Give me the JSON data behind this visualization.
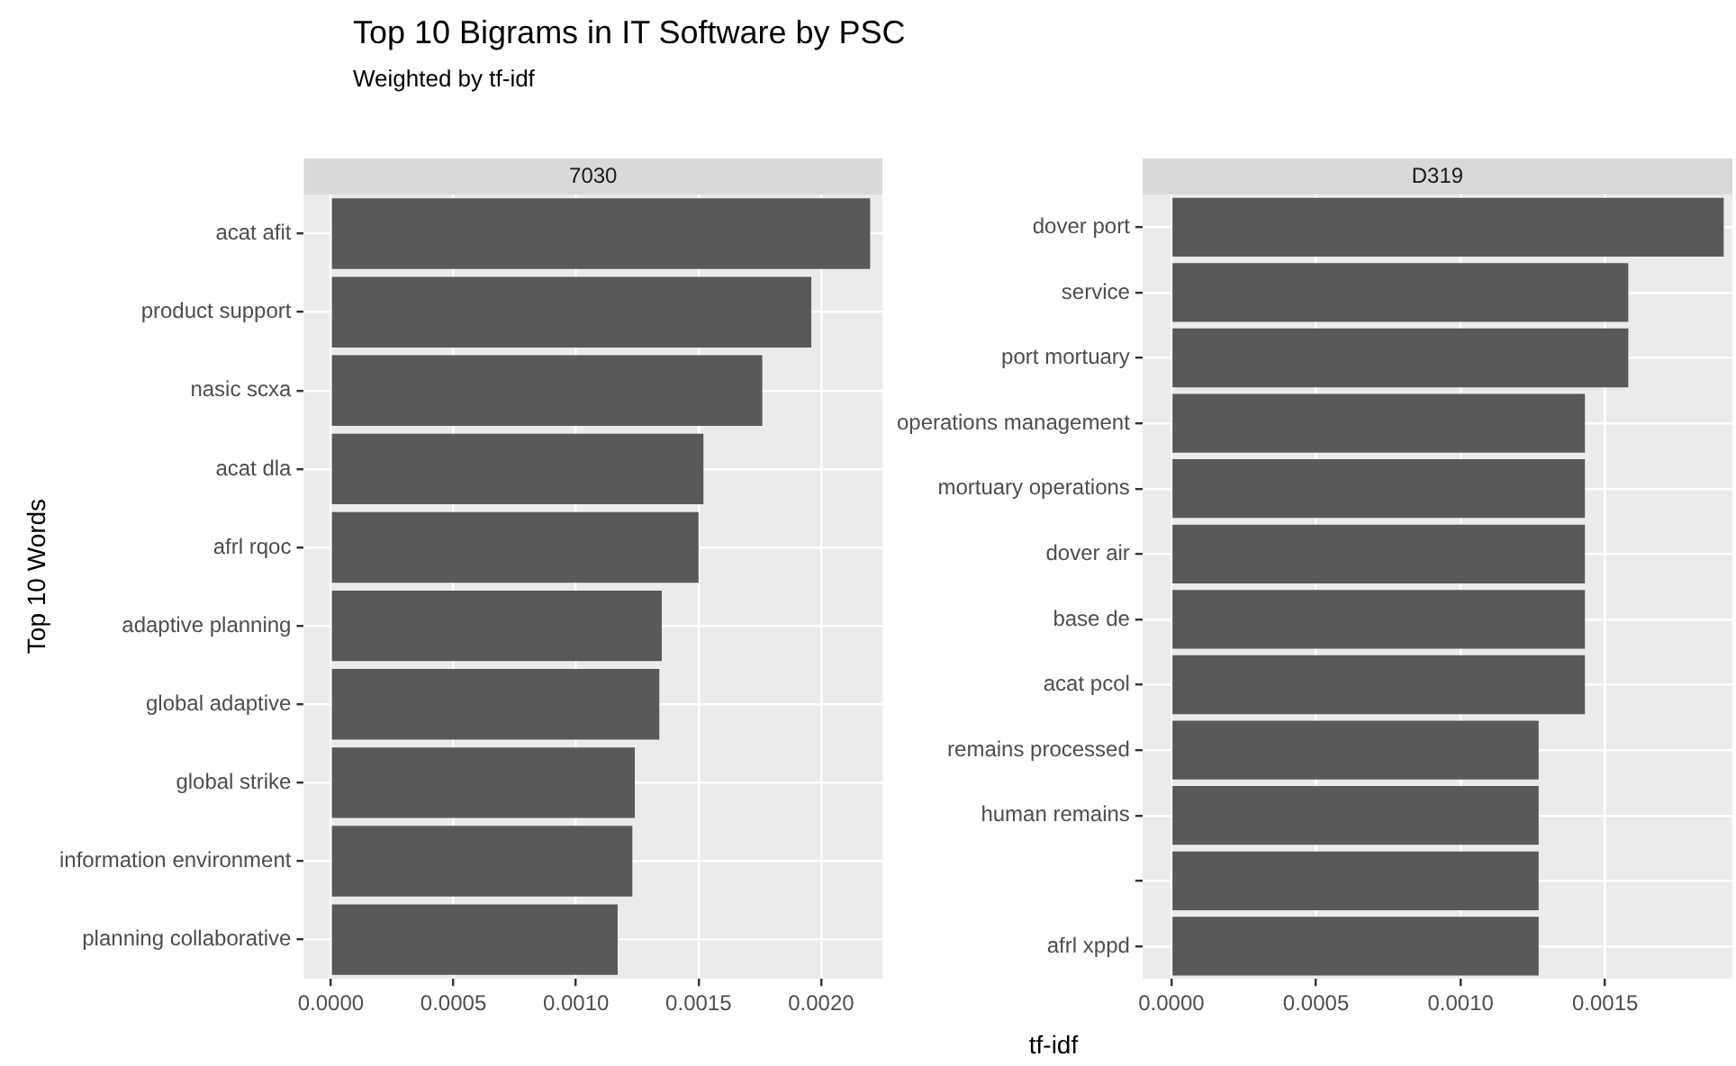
{
  "chart_data": [
    {
      "type": "bar",
      "orientation": "horizontal",
      "title": "7030",
      "annotations": [
        "Top 10 Bigrams in IT Software by PSC",
        "Weighted by tf-idf"
      ],
      "ylabel": "Top 10 Words",
      "xlabel": "tf-idf",
      "categories": [
        "acat afit",
        "product support",
        "nasic scxa",
        "acat dla",
        "afrl rqoc",
        "adaptive planning",
        "global adaptive",
        "global strike",
        "information environment",
        "planning collaborative"
      ],
      "values": [
        0.0022,
        0.00196,
        0.00176,
        0.00152,
        0.0015,
        0.00135,
        0.00134,
        0.00124,
        0.00123,
        0.00117
      ],
      "color": "#595959",
      "xlim": [
        -0.00011,
        0.00225
      ],
      "xticks": [
        {
          "value": 0,
          "label": "0.0000"
        },
        {
          "value": 0.0005,
          "label": "0.0005"
        },
        {
          "value": 0.001,
          "label": "0.0010"
        },
        {
          "value": 0.0015,
          "label": "0.0015"
        },
        {
          "value": 0.002,
          "label": "0.0020"
        }
      ],
      "grid": true,
      "legend": false
    },
    {
      "type": "bar",
      "orientation": "horizontal",
      "title": "D319",
      "categories": [
        "dover port",
        "service",
        "port mortuary",
        "operations management",
        "mortuary operations",
        "dover air",
        "base de",
        "acat pcol",
        "remains processed",
        "human remains",
        null,
        "afrl xppd"
      ],
      "values": [
        0.00191,
        0.00158,
        0.00158,
        0.00143,
        0.00143,
        0.00143,
        0.00143,
        0.00143,
        0.00127,
        0.00127,
        0.00127,
        0.00127
      ],
      "color": "#595959",
      "xlim": [
        -0.0001,
        0.00194
      ],
      "xticks": [
        {
          "value": 0,
          "label": "0.0000"
        },
        {
          "value": 0.0005,
          "label": "0.0005"
        },
        {
          "value": 0.001,
          "label": "0.0010"
        },
        {
          "value": 0.0015,
          "label": "0.0015"
        }
      ],
      "grid": true,
      "legend": false
    }
  ]
}
